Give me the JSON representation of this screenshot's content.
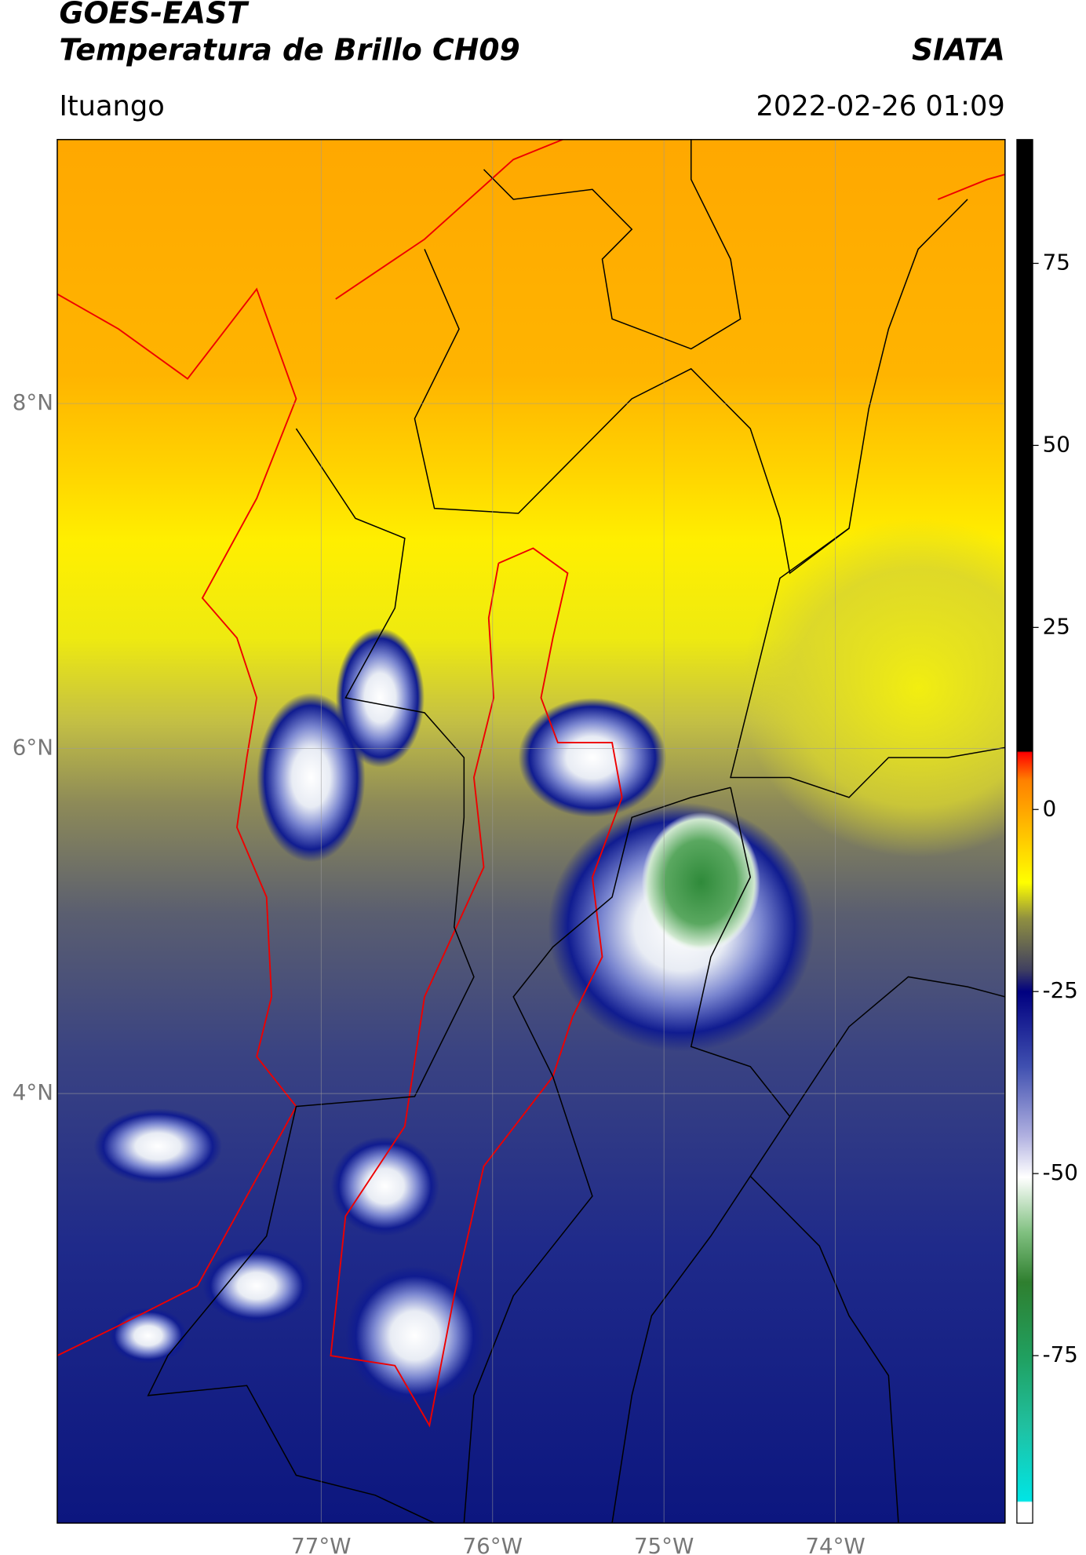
{
  "header": {
    "title": "GOES-EAST",
    "subtitle": "Temperatura de Brillo CH09",
    "source": "SIATA",
    "location": "Ituango",
    "timestamp": "2022-02-26 01:09"
  },
  "map": {
    "xlim": [
      -78.54,
      -73.01
    ],
    "ylim": [
      1.51,
      9.53
    ],
    "xticks": [
      {
        "value": -77,
        "label": "77°W"
      },
      {
        "value": -76,
        "label": "76°W"
      },
      {
        "value": -75,
        "label": "75°W"
      },
      {
        "value": -74,
        "label": "74°W"
      }
    ],
    "yticks": [
      {
        "value": 8,
        "label": "8°N"
      },
      {
        "value": 6,
        "label": "6°N"
      },
      {
        "value": 4,
        "label": "4°N"
      }
    ],
    "grid": true
  },
  "colorbar": {
    "lim": [
      -98,
      92
    ],
    "ticks": [
      75,
      50,
      25,
      0,
      -25,
      -50,
      -75
    ]
  }
}
